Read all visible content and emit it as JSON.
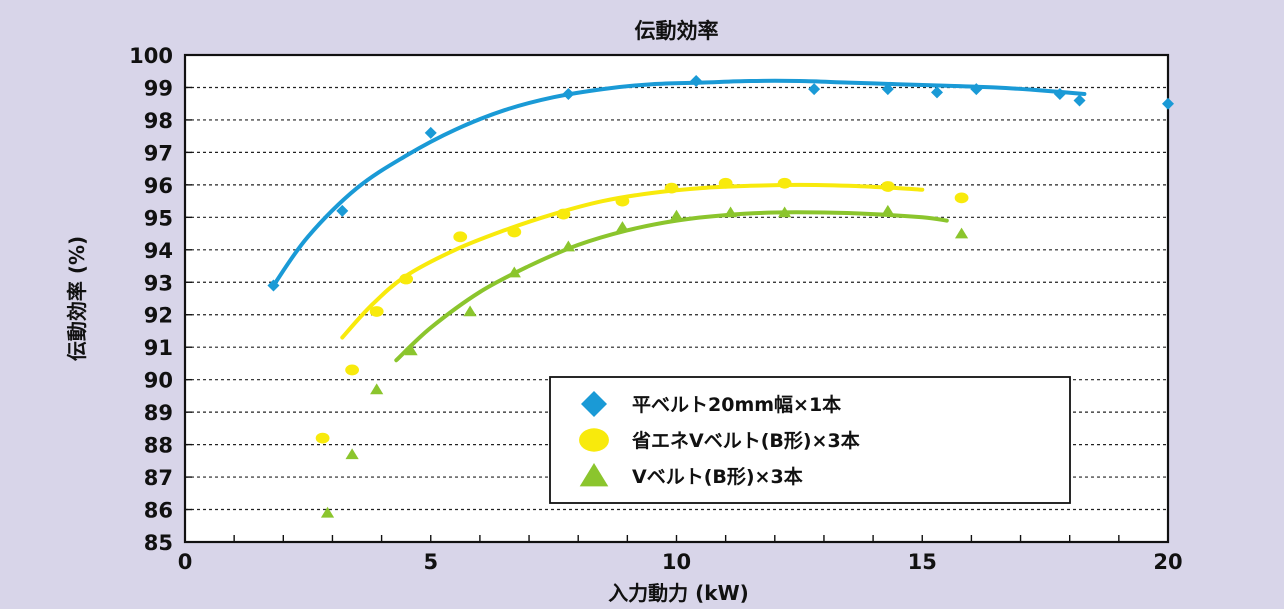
{
  "chart_data": {
    "type": "scatter",
    "title": "伝動効率",
    "xlabel": "入力動力 (kW)",
    "ylabel": "伝動効率 (%)",
    "xlim": [
      0,
      20
    ],
    "ylim": [
      85,
      100
    ],
    "x_ticks": [
      "0",
      "5",
      "10",
      "15",
      "20"
    ],
    "y_ticks": [
      "85",
      "86",
      "87",
      "88",
      "89",
      "90",
      "91",
      "92",
      "93",
      "94",
      "95",
      "96",
      "97",
      "98",
      "99",
      "100"
    ],
    "grid": "horizontal dashed",
    "legend_position": "lower-center",
    "series": [
      {
        "name": "平ベルト20mm幅×1本",
        "marker": "diamond",
        "color": "#1a9ad6",
        "points": [
          [
            1.8,
            92.9
          ],
          [
            3.2,
            95.2
          ],
          [
            5.0,
            97.6
          ],
          [
            7.8,
            98.8
          ],
          [
            10.4,
            99.2
          ],
          [
            12.8,
            98.95
          ],
          [
            14.3,
            98.95
          ],
          [
            15.3,
            98.85
          ],
          [
            16.1,
            98.95
          ],
          [
            17.8,
            98.8
          ],
          [
            18.2,
            98.6
          ],
          [
            20.0,
            98.5
          ]
        ],
        "trend": [
          [
            1.8,
            92.9
          ],
          [
            2.5,
            94.4
          ],
          [
            3.5,
            95.9
          ],
          [
            4.5,
            96.9
          ],
          [
            5.5,
            97.7
          ],
          [
            6.5,
            98.3
          ],
          [
            7.5,
            98.7
          ],
          [
            8.5,
            98.95
          ],
          [
            9.5,
            99.1
          ],
          [
            10.5,
            99.15
          ],
          [
            11.5,
            99.2
          ],
          [
            12.5,
            99.2
          ],
          [
            13.5,
            99.15
          ],
          [
            14.5,
            99.1
          ],
          [
            15.5,
            99.05
          ],
          [
            16.5,
            99.0
          ],
          [
            17.5,
            98.9
          ],
          [
            18.3,
            98.8
          ]
        ]
      },
      {
        "name": "省エネVベルト(B形)×3本",
        "marker": "circle",
        "color": "#f8ea0c",
        "points": [
          [
            2.8,
            88.2
          ],
          [
            3.4,
            90.3
          ],
          [
            3.9,
            92.1
          ],
          [
            4.5,
            93.1
          ],
          [
            5.6,
            94.4
          ],
          [
            6.7,
            94.55
          ],
          [
            7.7,
            95.1
          ],
          [
            8.9,
            95.5
          ],
          [
            9.9,
            95.9
          ],
          [
            11.0,
            96.05
          ],
          [
            12.2,
            96.05
          ],
          [
            14.3,
            95.95
          ],
          [
            15.8,
            95.6
          ]
        ],
        "trend": [
          [
            3.2,
            91.3
          ],
          [
            3.8,
            92.3
          ],
          [
            4.5,
            93.2
          ],
          [
            5.5,
            94.0
          ],
          [
            6.5,
            94.6
          ],
          [
            7.5,
            95.1
          ],
          [
            8.5,
            95.5
          ],
          [
            9.5,
            95.75
          ],
          [
            10.5,
            95.9
          ],
          [
            11.5,
            95.97
          ],
          [
            12.5,
            96.0
          ],
          [
            13.5,
            95.97
          ],
          [
            14.5,
            95.9
          ],
          [
            15.0,
            95.85
          ]
        ]
      },
      {
        "name": "Vベルト(B形)×3本",
        "marker": "triangle",
        "color": "#8bc52d",
        "points": [
          [
            2.9,
            85.9
          ],
          [
            3.4,
            87.7
          ],
          [
            3.9,
            89.7
          ],
          [
            4.6,
            90.9
          ],
          [
            5.8,
            92.1
          ],
          [
            6.7,
            93.3
          ],
          [
            7.8,
            94.1
          ],
          [
            8.9,
            94.7
          ],
          [
            10.0,
            95.05
          ],
          [
            11.1,
            95.15
          ],
          [
            12.2,
            95.15
          ],
          [
            14.3,
            95.2
          ],
          [
            15.8,
            94.5
          ]
        ],
        "trend": [
          [
            4.3,
            90.6
          ],
          [
            5.0,
            91.6
          ],
          [
            6.0,
            92.7
          ],
          [
            7.0,
            93.5
          ],
          [
            8.0,
            94.15
          ],
          [
            9.0,
            94.6
          ],
          [
            10.0,
            94.9
          ],
          [
            11.0,
            95.07
          ],
          [
            12.0,
            95.15
          ],
          [
            13.0,
            95.15
          ],
          [
            14.0,
            95.1
          ],
          [
            15.0,
            95.0
          ],
          [
            15.5,
            94.9
          ]
        ]
      }
    ]
  }
}
